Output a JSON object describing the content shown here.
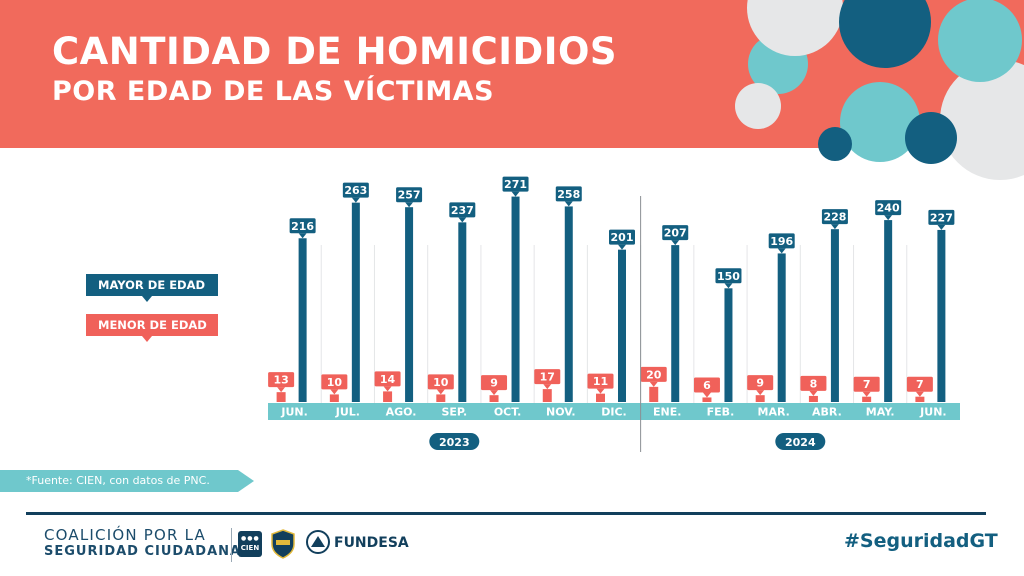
{
  "header": {
    "title_line1": "CANTIDAD DE HOMICIDIOS",
    "title_line2": "POR EDAD DE LAS VÍCTIMAS",
    "bg_color": "#f16a5c"
  },
  "legend": {
    "mayor_label": "MAYOR DE EDAD",
    "menor_label": "MENOR DE EDAD"
  },
  "colors": {
    "mayor": "#135f80",
    "menor": "#f0615a",
    "axis_band": "#6fc8cc",
    "footer_line": "#123f5c"
  },
  "chart_data": {
    "type": "bar",
    "categories": [
      "JUN.",
      "JUL.",
      "AGO.",
      "SEP.",
      "OCT.",
      "NOV.",
      "DIC.",
      "ENE.",
      "FEB.",
      "MAR.",
      "ABR.",
      "MAY.",
      "JUN."
    ],
    "years": [
      {
        "label": "2023",
        "from": 0,
        "to": 6
      },
      {
        "label": "2024",
        "from": 7,
        "to": 12
      }
    ],
    "series": [
      {
        "name": "MAYOR DE EDAD",
        "values": [
          216,
          263,
          257,
          237,
          271,
          258,
          201,
          207,
          150,
          196,
          228,
          240,
          227
        ]
      },
      {
        "name": "MENOR DE EDAD",
        "values": [
          13,
          10,
          14,
          10,
          9,
          17,
          11,
          20,
          6,
          9,
          8,
          7,
          7
        ]
      }
    ],
    "title": "CANTIDAD DE HOMICIDIOS POR EDAD DE LAS VÍCTIMAS",
    "xlabel": "",
    "ylabel": "",
    "ylim": [
      0,
      300
    ],
    "grid": false,
    "legend_position": "left"
  },
  "source": "*Fuente: CIEN, con datos de PNC.",
  "footer": {
    "coalition_line1": "COALICIÓN POR LA",
    "coalition_line2": "SEGURIDAD CIUDADANA",
    "cien_label": "CIEN",
    "fundesa_label": "FUNDESA",
    "hashtag": "#SeguridadGT"
  }
}
